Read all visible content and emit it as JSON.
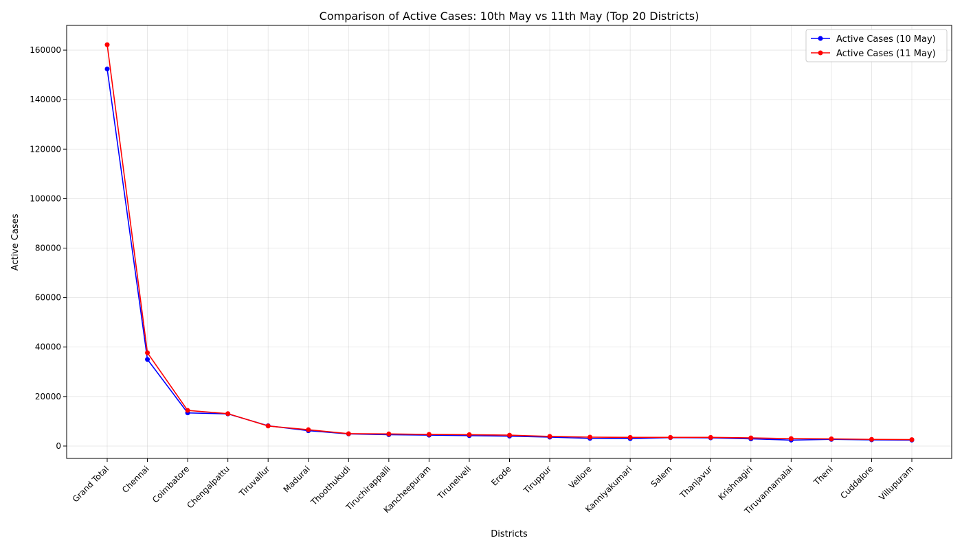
{
  "chart_data": {
    "type": "line",
    "title": "Comparison of Active Cases: 10th May vs 11th May (Top 20 Districts)",
    "xlabel": "Districts",
    "ylabel": "Active Cases",
    "ylim": [
      -5000,
      170000
    ],
    "yticks": [
      0,
      20000,
      40000,
      60000,
      80000,
      100000,
      120000,
      140000,
      160000
    ],
    "grid": true,
    "legend_position": "top-right",
    "categories": [
      "Grand Total",
      "Chennai",
      "Coimbatore",
      "Chengalpattu",
      "Tiruvallur",
      "Madurai",
      "Thoothukudi",
      "Tiruchirappalli",
      "Kancheepuram",
      "Tirunelveli",
      "Erode",
      "Tiruppur",
      "Vellore",
      "Kanniyakumari",
      "Salem",
      "Thanjavur",
      "Krishnagiri",
      "Tiruvannamalai",
      "Theni",
      "Cuddalore",
      "Villupuram"
    ],
    "series": [
      {
        "name": "Active Cases (10 May)",
        "color": "#0000ff",
        "values": [
          152400,
          35000,
          13400,
          13000,
          8200,
          6200,
          4900,
          4600,
          4400,
          4200,
          4000,
          3600,
          3100,
          3000,
          3400,
          3300,
          2900,
          2400,
          2700,
          2500,
          2400
        ]
      },
      {
        "name": "Active Cases (11 May)",
        "color": "#ff0000",
        "values": [
          162200,
          37700,
          14400,
          13100,
          8100,
          6600,
          5000,
          4900,
          4700,
          4600,
          4400,
          3900,
          3600,
          3500,
          3500,
          3500,
          3300,
          3000,
          2900,
          2700,
          2600
        ]
      }
    ]
  }
}
